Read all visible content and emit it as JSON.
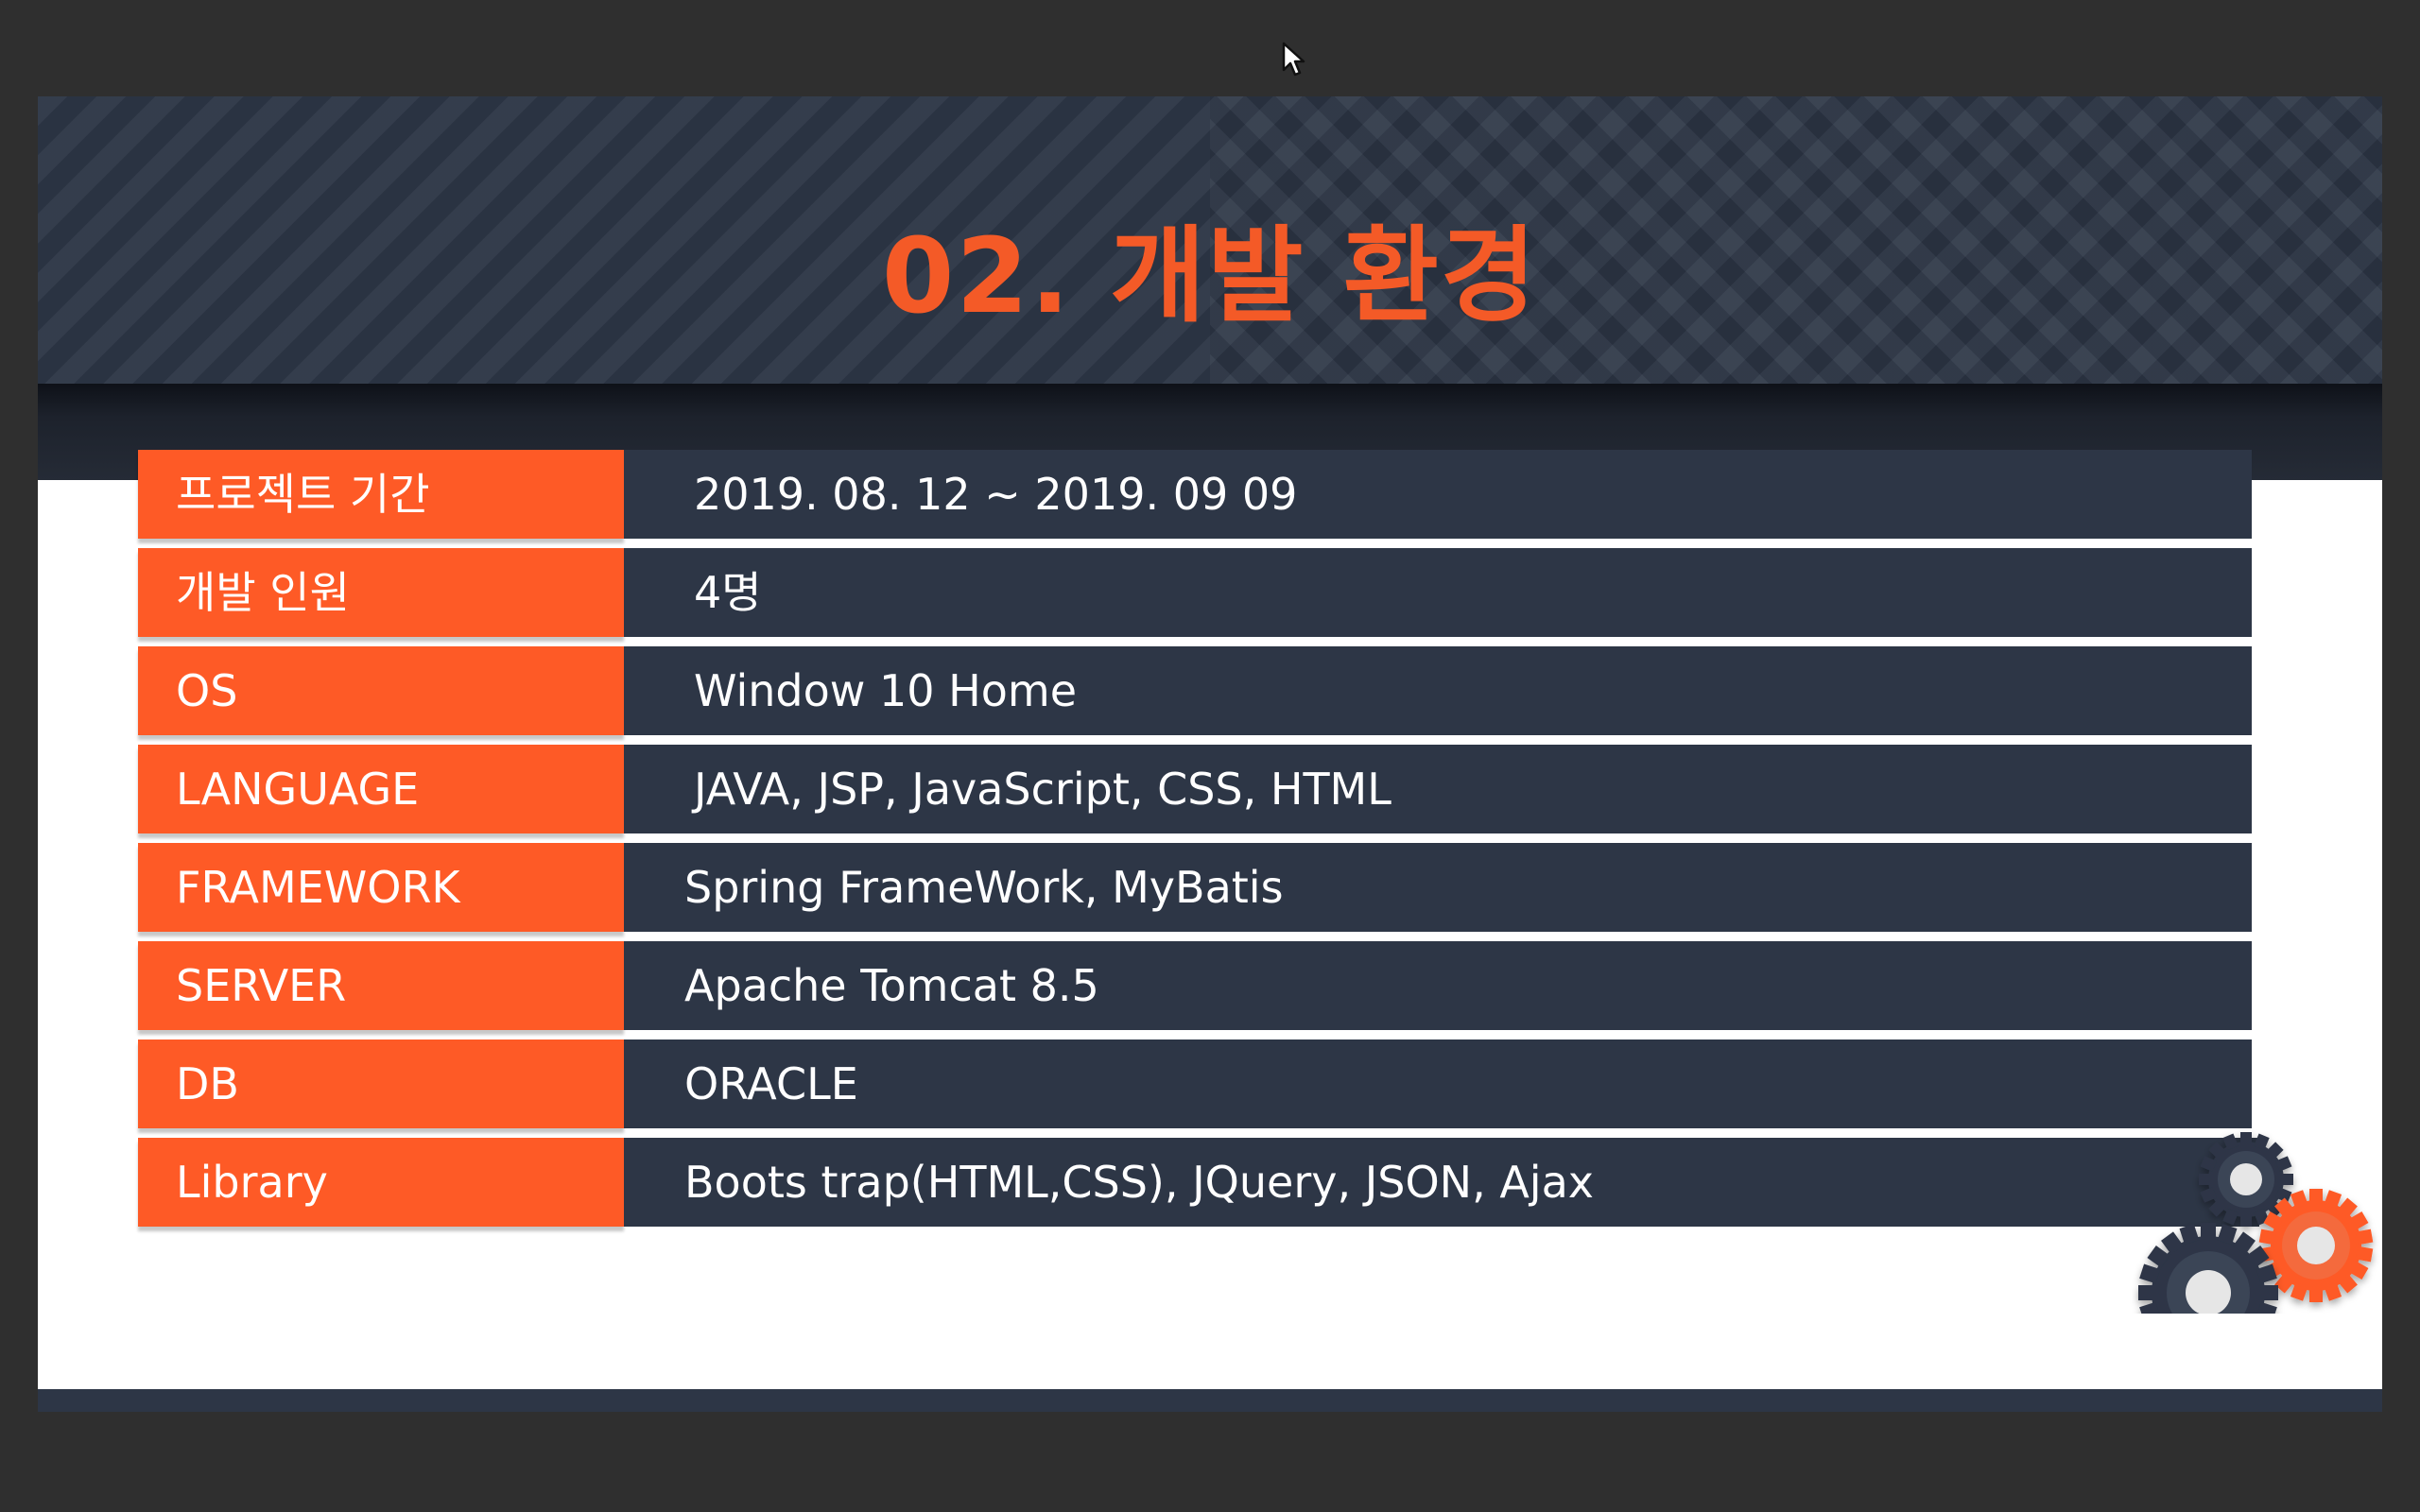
{
  "slide": {
    "title": "02. 개발 환경"
  },
  "spec_table": {
    "rows": [
      {
        "label": "프로젝트 기간",
        "value": "2019. 08. 12 ~ 2019. 09 09"
      },
      {
        "label": "개발 인원",
        "value": "4명"
      },
      {
        "label": "OS",
        "value": "Window 10 Home"
      },
      {
        "label": "LANGUAGE",
        "value": "JAVA, JSP, JavaScript, CSS, HTML"
      },
      {
        "label": "FRAMEWORK",
        "value": "Spring FrameWork, MyBatis"
      },
      {
        "label": "SERVER",
        "value": "Apache Tomcat 8.5"
      },
      {
        "label": "DB",
        "value": "ORACLE"
      },
      {
        "label": "Library",
        "value": "Boots trap(HTML,CSS), JQuery, JSON, Ajax"
      }
    ]
  },
  "colors": {
    "accent": "#fe5a26",
    "title": "#f45a27",
    "navy": "#2d3646",
    "background": "#2f2f2f"
  },
  "icons": {
    "cursor": "mouse-pointer-icon",
    "gears": "gears-icon"
  }
}
